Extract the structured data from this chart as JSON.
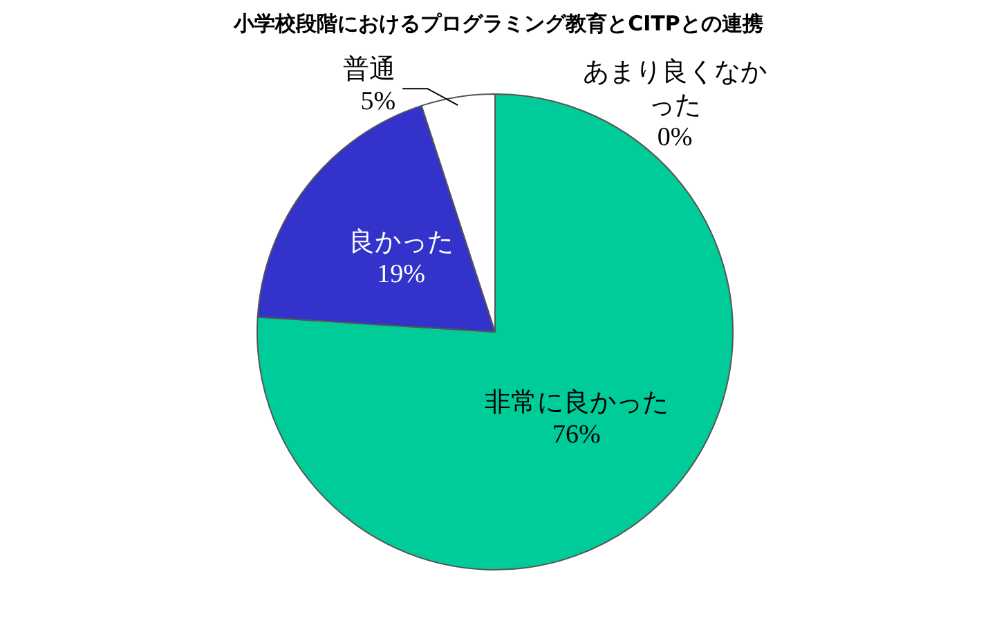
{
  "chart_data": {
    "type": "pie",
    "title": "小学校段階におけるプログラミング教育とCITPとの連携",
    "categories": [
      "非常に良かった",
      "良かった",
      "普通",
      "あまり良くなかった"
    ],
    "values": [
      76,
      19,
      5,
      0
    ],
    "colors": [
      "#00cc99",
      "#3333cc",
      "#ffffff",
      "#ff9900"
    ],
    "value_labels": [
      "76%",
      "19%",
      "5%",
      "0%"
    ]
  }
}
